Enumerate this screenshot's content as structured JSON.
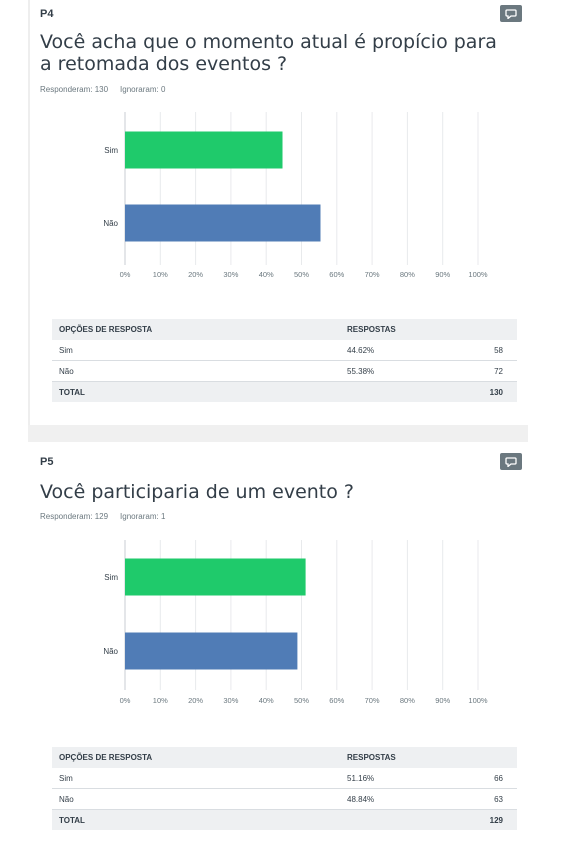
{
  "questions": [
    {
      "number": "P4",
      "title": "Você acha que o momento atual é propício para a retomada dos eventos ?",
      "answered": "Responderam: 130",
      "skipped": "Ignoraram: 0",
      "table": {
        "header_options": "OPÇÕES DE RESPOSTA",
        "header_responses": "RESPOSTAS",
        "rows": [
          {
            "option": "Sim",
            "percent": "44.62%",
            "count": "58"
          },
          {
            "option": "Não",
            "percent": "55.38%",
            "count": "72"
          }
        ],
        "total_label": "TOTAL",
        "total_value": "130"
      }
    },
    {
      "number": "P5",
      "title": "Você participaria de um evento ?",
      "answered": "Responderam: 129",
      "skipped": "Ignoraram: 1",
      "table": {
        "header_options": "OPÇÕES DE RESPOSTA",
        "header_responses": "RESPOSTAS",
        "rows": [
          {
            "option": "Sim",
            "percent": "51.16%",
            "count": "66"
          },
          {
            "option": "Não",
            "percent": "48.84%",
            "count": "63"
          }
        ],
        "total_label": "TOTAL",
        "total_value": "129"
      }
    }
  ],
  "colors": {
    "sim": "#1fca6b",
    "nao": "#507cb6",
    "grid": "#e8eaec"
  },
  "icons": {
    "comment": "comment-icon"
  },
  "chart_data": [
    {
      "type": "bar",
      "orientation": "horizontal",
      "categories": [
        "Sim",
        "Não"
      ],
      "values": [
        44.62,
        55.38
      ],
      "xlim": [
        0,
        100
      ],
      "x_ticks": [
        "0%",
        "10%",
        "20%",
        "30%",
        "40%",
        "50%",
        "60%",
        "70%",
        "80%",
        "90%",
        "100%"
      ],
      "grid": true
    },
    {
      "type": "bar",
      "orientation": "horizontal",
      "categories": [
        "Sim",
        "Não"
      ],
      "values": [
        51.16,
        48.84
      ],
      "xlim": [
        0,
        100
      ],
      "x_ticks": [
        "0%",
        "10%",
        "20%",
        "30%",
        "40%",
        "50%",
        "60%",
        "70%",
        "80%",
        "90%",
        "100%"
      ],
      "grid": true
    }
  ]
}
